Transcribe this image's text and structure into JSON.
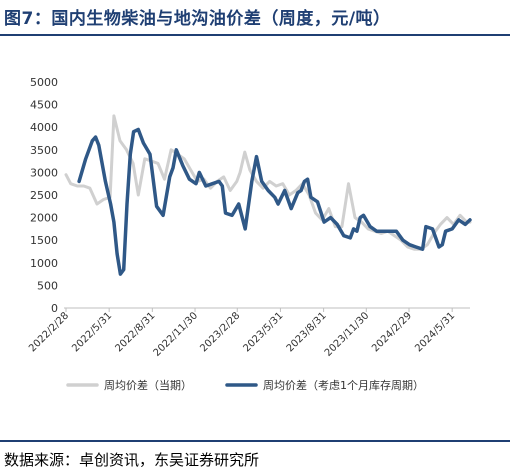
{
  "title": "图7：国内生物柴油与地沟油价差（周度，元/吨）",
  "source": "数据来源：卓创资讯，东吴证券研究所",
  "colors": {
    "accent": "#1f3f73",
    "series_current": "#d0d0d0",
    "series_inventory": "#2f5887"
  },
  "chart_data": {
    "type": "line",
    "title": "",
    "xlabel": "",
    "ylabel": "",
    "ylim": [
      0,
      5000
    ],
    "yticks": [
      "0",
      "500",
      "1000",
      "1500",
      "2000",
      "2500",
      "3000",
      "3500",
      "4000",
      "4500",
      "5000"
    ],
    "xticks": [
      "2022/2/28",
      "2022/5/31",
      "2022/8/31",
      "2022/11/30",
      "2023/2/28",
      "2023/5/31",
      "2023/8/31",
      "2023/11/30",
      "2024/2/29",
      "2024/5/31"
    ],
    "grid": false,
    "legend": "bottom",
    "series": [
      {
        "name": "周均价差（当期）",
        "points": [
          [
            "2022-02-28",
            2950
          ],
          [
            "2022-03-10",
            2750
          ],
          [
            "2022-03-24",
            2700
          ],
          [
            "2022-04-07",
            2700
          ],
          [
            "2022-04-20",
            2650
          ],
          [
            "2022-05-05",
            2300
          ],
          [
            "2022-05-19",
            2400
          ],
          [
            "2022-06-02",
            2450
          ],
          [
            "2022-06-10",
            4250
          ],
          [
            "2022-06-23",
            3700
          ],
          [
            "2022-07-07",
            3500
          ],
          [
            "2022-07-21",
            3200
          ],
          [
            "2022-08-01",
            2500
          ],
          [
            "2022-08-15",
            3300
          ],
          [
            "2022-08-29",
            3250
          ],
          [
            "2022-09-12",
            3200
          ],
          [
            "2022-09-26",
            2850
          ],
          [
            "2022-10-10",
            3500
          ],
          [
            "2022-10-24",
            3400
          ],
          [
            "2022-11-07",
            3300
          ],
          [
            "2022-11-21",
            3050
          ],
          [
            "2022-12-05",
            2800
          ],
          [
            "2022-12-19",
            2850
          ],
          [
            "2023-01-02",
            2650
          ],
          [
            "2023-01-16",
            2800
          ],
          [
            "2023-01-30",
            2900
          ],
          [
            "2023-02-13",
            2600
          ],
          [
            "2023-02-27",
            2800
          ],
          [
            "2023-03-06",
            3000
          ],
          [
            "2023-03-16",
            3450
          ],
          [
            "2023-03-27",
            3050
          ],
          [
            "2023-04-10",
            2800
          ],
          [
            "2023-04-24",
            2650
          ],
          [
            "2023-05-08",
            2800
          ],
          [
            "2023-05-22",
            2700
          ],
          [
            "2023-06-05",
            2750
          ],
          [
            "2023-06-19",
            2500
          ],
          [
            "2023-07-03",
            2600
          ],
          [
            "2023-07-17",
            2750
          ],
          [
            "2023-07-31",
            2500
          ],
          [
            "2023-08-14",
            2100
          ],
          [
            "2023-08-28",
            1950
          ],
          [
            "2023-09-11",
            2200
          ],
          [
            "2023-09-25",
            1800
          ],
          [
            "2023-10-09",
            1800
          ],
          [
            "2023-10-23",
            2750
          ],
          [
            "2023-11-06",
            2000
          ],
          [
            "2023-11-20",
            1900
          ],
          [
            "2023-12-04",
            1750
          ],
          [
            "2023-12-18",
            1700
          ],
          [
            "2024-01-01",
            1650
          ],
          [
            "2024-01-15",
            1700
          ],
          [
            "2024-01-29",
            1600
          ],
          [
            "2024-02-12",
            1500
          ],
          [
            "2024-02-26",
            1350
          ],
          [
            "2024-03-11",
            1300
          ],
          [
            "2024-03-25",
            1300
          ],
          [
            "2024-04-08",
            1400
          ],
          [
            "2024-04-22",
            1650
          ],
          [
            "2024-05-06",
            1850
          ],
          [
            "2024-05-20",
            2000
          ],
          [
            "2024-06-03",
            1850
          ],
          [
            "2024-06-17",
            2050
          ],
          [
            "2024-07-01",
            1900
          ],
          [
            "2024-07-08",
            1900
          ]
        ]
      },
      {
        "name": "周均价差（考虑1个月库存周期）",
        "points": [
          [
            "2022-03-28",
            2800
          ],
          [
            "2022-04-11",
            3300
          ],
          [
            "2022-04-25",
            3700
          ],
          [
            "2022-05-02",
            3780
          ],
          [
            "2022-05-09",
            3600
          ],
          [
            "2022-05-23",
            2800
          ],
          [
            "2022-06-03",
            2300
          ],
          [
            "2022-06-10",
            1900
          ],
          [
            "2022-06-17",
            1200
          ],
          [
            "2022-06-24",
            750
          ],
          [
            "2022-07-01",
            850
          ],
          [
            "2022-07-08",
            2300
          ],
          [
            "2022-07-15",
            3400
          ],
          [
            "2022-07-22",
            3900
          ],
          [
            "2022-08-01",
            3950
          ],
          [
            "2022-08-12",
            3650
          ],
          [
            "2022-08-26",
            3400
          ],
          [
            "2022-09-09",
            2250
          ],
          [
            "2022-09-23",
            2050
          ],
          [
            "2022-10-07",
            2900
          ],
          [
            "2022-10-14",
            3100
          ],
          [
            "2022-10-21",
            3500
          ],
          [
            "2022-11-04",
            3150
          ],
          [
            "2022-11-18",
            2850
          ],
          [
            "2022-12-02",
            2750
          ],
          [
            "2022-12-09",
            3000
          ],
          [
            "2022-12-23",
            2700
          ],
          [
            "2023-01-06",
            2750
          ],
          [
            "2023-01-20",
            2800
          ],
          [
            "2023-01-27",
            2700
          ],
          [
            "2023-02-03",
            2100
          ],
          [
            "2023-02-17",
            2050
          ],
          [
            "2023-03-03",
            2300
          ],
          [
            "2023-03-17",
            1750
          ],
          [
            "2023-03-31",
            2800
          ],
          [
            "2023-04-10",
            3350
          ],
          [
            "2023-04-21",
            2800
          ],
          [
            "2023-05-05",
            2600
          ],
          [
            "2023-05-19",
            2450
          ],
          [
            "2023-05-26",
            2300
          ],
          [
            "2023-06-09",
            2600
          ],
          [
            "2023-06-23",
            2200
          ],
          [
            "2023-07-07",
            2550
          ],
          [
            "2023-07-14",
            2600
          ],
          [
            "2023-07-21",
            2800
          ],
          [
            "2023-07-28",
            2850
          ],
          [
            "2023-08-04",
            2450
          ],
          [
            "2023-08-18",
            2350
          ],
          [
            "2023-09-01",
            1900
          ],
          [
            "2023-09-15",
            2000
          ],
          [
            "2023-09-29",
            1850
          ],
          [
            "2023-10-13",
            1600
          ],
          [
            "2023-10-27",
            1550
          ],
          [
            "2023-11-03",
            1750
          ],
          [
            "2023-11-10",
            1700
          ],
          [
            "2023-11-17",
            2000
          ],
          [
            "2023-11-24",
            2050
          ],
          [
            "2023-12-08",
            1800
          ],
          [
            "2023-12-22",
            1700
          ],
          [
            "2024-01-05",
            1700
          ],
          [
            "2024-01-19",
            1700
          ],
          [
            "2024-02-02",
            1700
          ],
          [
            "2024-02-16",
            1500
          ],
          [
            "2024-03-01",
            1400
          ],
          [
            "2024-03-15",
            1350
          ],
          [
            "2024-03-29",
            1300
          ],
          [
            "2024-04-05",
            1800
          ],
          [
            "2024-04-19",
            1750
          ],
          [
            "2024-05-03",
            1350
          ],
          [
            "2024-05-10",
            1400
          ],
          [
            "2024-05-17",
            1700
          ],
          [
            "2024-05-31",
            1750
          ],
          [
            "2024-06-14",
            1950
          ],
          [
            "2024-06-28",
            1850
          ],
          [
            "2024-07-08",
            1950
          ]
        ]
      }
    ]
  }
}
